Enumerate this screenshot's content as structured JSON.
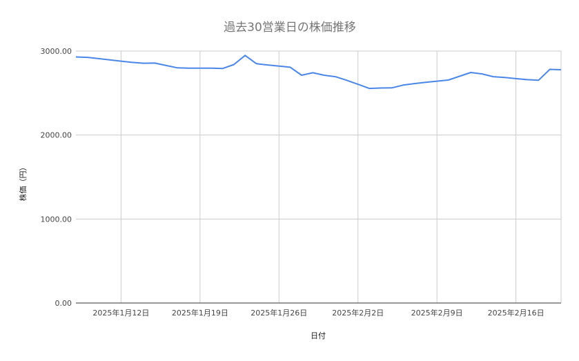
{
  "chart_data": {
    "type": "line",
    "title": "過去30営業日の株価推移",
    "xlabel": "日付",
    "ylabel": "株価（円）",
    "ylim": [
      0,
      3000
    ],
    "yticks": [
      "0.00",
      "1000.00",
      "2000.00",
      "3000.00"
    ],
    "ytick_values": [
      0,
      1000,
      2000,
      3000
    ],
    "xticks": [
      {
        "label": "2025年1月12日",
        "x": "2025-01-12"
      },
      {
        "label": "2025年1月19日",
        "x": "2025-01-19"
      },
      {
        "label": "2025年1月26日",
        "x": "2025-01-26"
      },
      {
        "label": "2025年2月2日",
        "x": "2025-02-02"
      },
      {
        "label": "2025年2月9日",
        "x": "2025-02-09"
      },
      {
        "label": "2025年2月16日",
        "x": "2025-02-16"
      }
    ],
    "xlim": [
      "2025-01-08",
      "2025-02-20"
    ],
    "grid": true,
    "color": "#4a86e8",
    "series": [
      {
        "name": "",
        "x": [
          "2025-01-08",
          "2025-01-09",
          "2025-01-10",
          "2025-01-11",
          "2025-01-12",
          "2025-01-13",
          "2025-01-14",
          "2025-01-15",
          "2025-01-16",
          "2025-01-17",
          "2025-01-18",
          "2025-01-19",
          "2025-01-20",
          "2025-01-21",
          "2025-01-22",
          "2025-01-23",
          "2025-01-24",
          "2025-01-25",
          "2025-01-26",
          "2025-01-27",
          "2025-01-28",
          "2025-01-29",
          "2025-01-30",
          "2025-01-31",
          "2025-02-01",
          "2025-02-02",
          "2025-02-03",
          "2025-02-04",
          "2025-02-05",
          "2025-02-06",
          "2025-02-07",
          "2025-02-08",
          "2025-02-09",
          "2025-02-10",
          "2025-02-11",
          "2025-02-12",
          "2025-02-13",
          "2025-02-14",
          "2025-02-15",
          "2025-02-16",
          "2025-02-17",
          "2025-02-18",
          "2025-02-19",
          "2025-02-20"
        ],
        "values": [
          2930,
          2925,
          2910,
          2895,
          2880,
          2865,
          2855,
          2857,
          2828,
          2800,
          2797,
          2797,
          2796,
          2792,
          2840,
          2948,
          2850,
          2835,
          2822,
          2808,
          2712,
          2742,
          2712,
          2695,
          2652,
          2605,
          2555,
          2560,
          2562,
          2595,
          2613,
          2628,
          2642,
          2655,
          2700,
          2745,
          2728,
          2695,
          2685,
          2672,
          2660,
          2652,
          2782,
          2778
        ]
      }
    ]
  }
}
